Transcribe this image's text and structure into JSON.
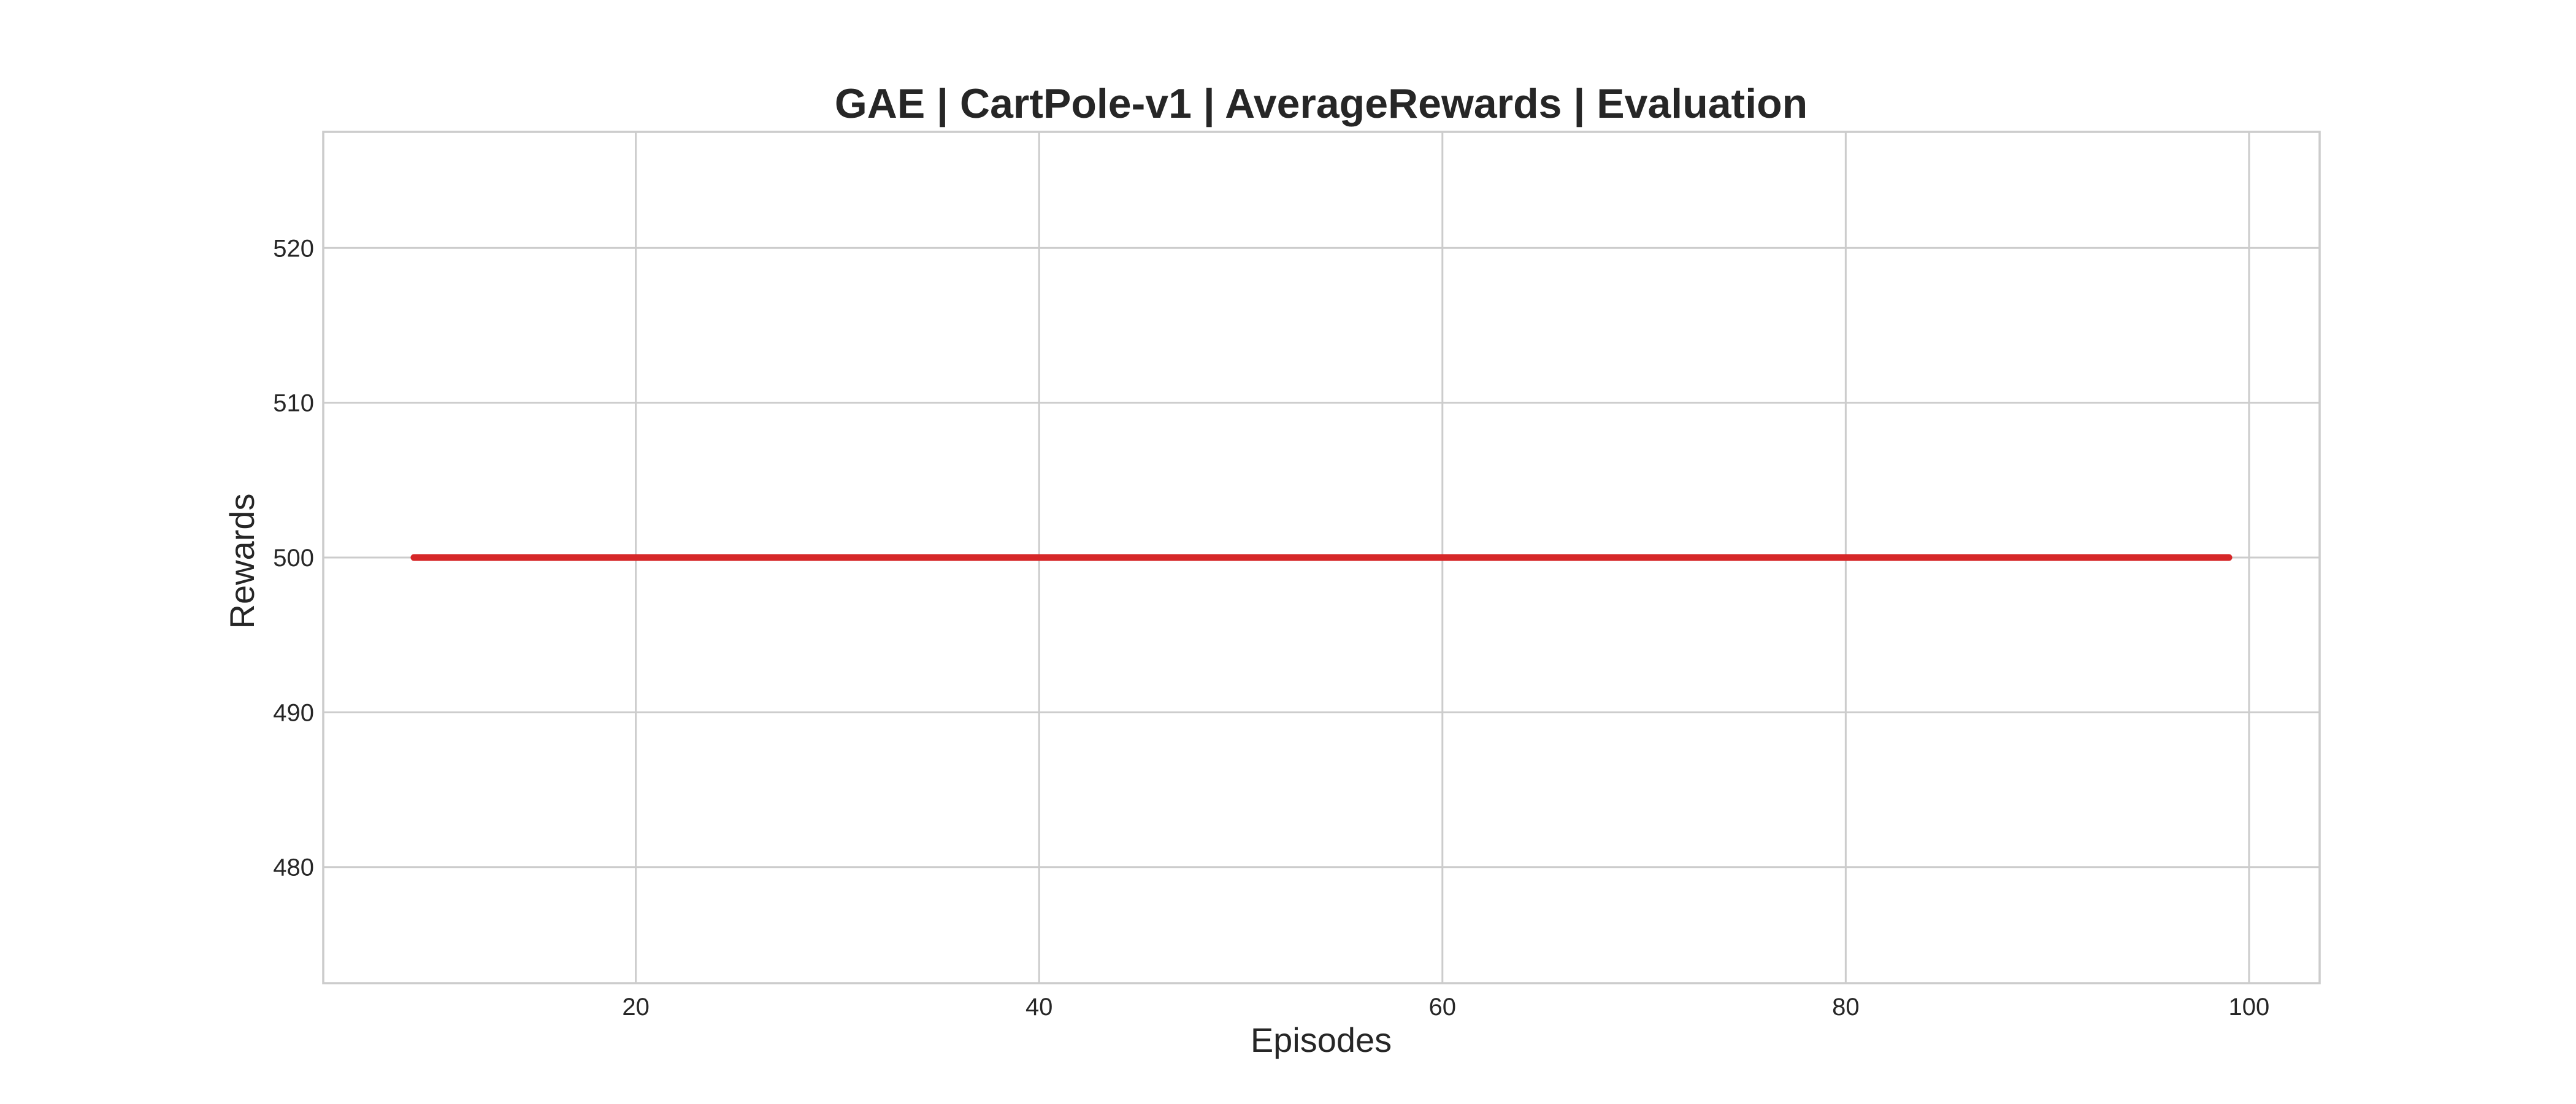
{
  "chart_data": {
    "type": "line",
    "title": "GAE | CartPole-v1 | AverageRewards | Evaluation",
    "xlabel": "Episodes",
    "ylabel": "Rewards",
    "xlim": [
      4.5,
      103.5
    ],
    "ylim": [
      472.5,
      527.5
    ],
    "xticks": [
      20,
      40,
      60,
      80,
      100
    ],
    "yticks": [
      480,
      490,
      500,
      510,
      520
    ],
    "grid": true,
    "legend": "none",
    "series": [
      {
        "color": "#d62728",
        "x": [
          9,
          99
        ],
        "y": [
          500,
          500
        ]
      }
    ]
  }
}
